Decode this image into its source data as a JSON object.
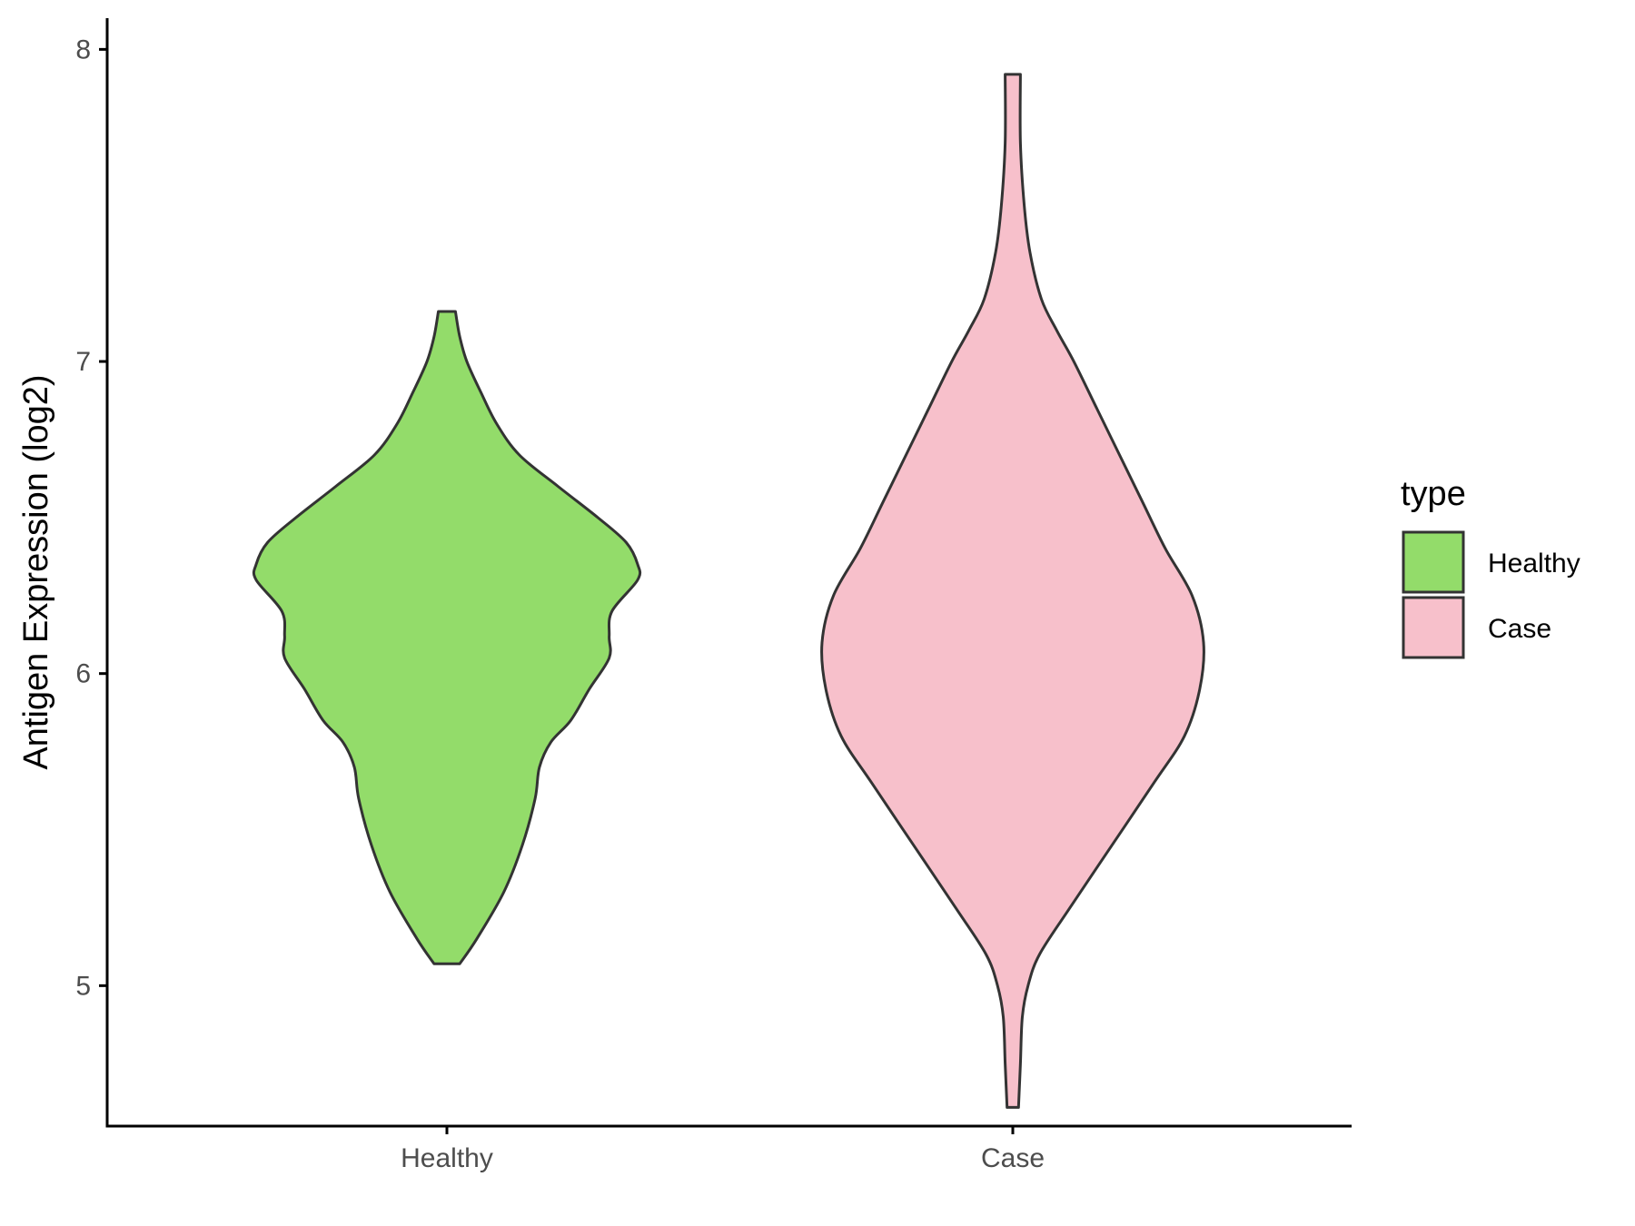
{
  "chart_data": {
    "type": "violin",
    "ylabel": "Antigen Expression (log2)",
    "xlabel": "",
    "ylim": [
      4.55,
      8.1
    ],
    "yticks": [
      5,
      6,
      7,
      8
    ],
    "categories": [
      "Healthy",
      "Case"
    ],
    "legend": {
      "title": "type",
      "position": "right",
      "entries": [
        {
          "label": "Healthy",
          "color": "#93dc6a"
        },
        {
          "label": "Case",
          "color": "#f7c0cb"
        }
      ]
    },
    "grid": false,
    "series": [
      {
        "name": "Healthy",
        "color": "#93dc6a",
        "y_min": 5.07,
        "y_max": 7.16,
        "density_profile": [
          [
            5.07,
            0.09
          ],
          [
            5.15,
            0.21
          ],
          [
            5.3,
            0.4
          ],
          [
            5.45,
            0.53
          ],
          [
            5.6,
            0.62
          ],
          [
            5.7,
            0.65
          ],
          [
            5.78,
            0.73
          ],
          [
            5.85,
            0.87
          ],
          [
            5.95,
            1.0
          ],
          [
            6.05,
            1.14
          ],
          [
            6.12,
            1.14
          ],
          [
            6.2,
            1.16
          ],
          [
            6.3,
            1.34
          ],
          [
            6.35,
            1.34
          ],
          [
            6.42,
            1.26
          ],
          [
            6.5,
            1.06
          ],
          [
            6.6,
            0.78
          ],
          [
            6.7,
            0.51
          ],
          [
            6.8,
            0.35
          ],
          [
            6.9,
            0.24
          ],
          [
            7.0,
            0.14
          ],
          [
            7.08,
            0.09
          ],
          [
            7.16,
            0.06
          ]
        ]
      },
      {
        "name": "Case",
        "color": "#f7c0cb",
        "y_min": 4.61,
        "y_max": 7.92,
        "density_profile": [
          [
            4.61,
            0.03
          ],
          [
            4.75,
            0.04
          ],
          [
            4.9,
            0.05
          ],
          [
            5.0,
            0.08
          ],
          [
            5.1,
            0.14
          ],
          [
            5.25,
            0.3
          ],
          [
            5.45,
            0.52
          ],
          [
            5.65,
            0.74
          ],
          [
            5.8,
            0.9
          ],
          [
            5.95,
            0.98
          ],
          [
            6.1,
            1.0
          ],
          [
            6.25,
            0.94
          ],
          [
            6.4,
            0.8
          ],
          [
            6.55,
            0.68
          ],
          [
            6.7,
            0.56
          ],
          [
            6.85,
            0.44
          ],
          [
            7.0,
            0.32
          ],
          [
            7.1,
            0.23
          ],
          [
            7.2,
            0.15
          ],
          [
            7.35,
            0.09
          ],
          [
            7.5,
            0.06
          ],
          [
            7.7,
            0.04
          ],
          [
            7.92,
            0.04
          ]
        ]
      }
    ]
  }
}
